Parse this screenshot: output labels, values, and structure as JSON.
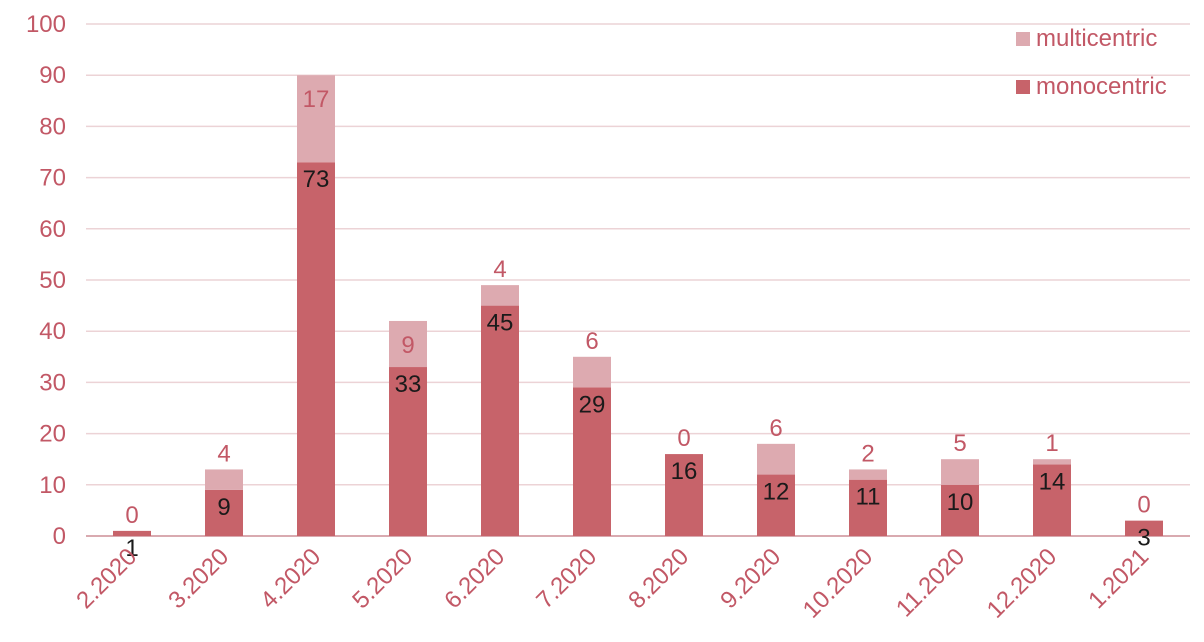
{
  "chart_data": {
    "type": "bar",
    "stacked": true,
    "categories": [
      "2.2020",
      "3.2020",
      "4.2020",
      "5.2020",
      "6.2020",
      "7.2020",
      "8.2020",
      "9.2020",
      "10.2020",
      "11.2020",
      "12.2020",
      "1.2021"
    ],
    "series": [
      {
        "name": "monocentric",
        "values": [
          1,
          9,
          73,
          33,
          45,
          29,
          16,
          12,
          11,
          10,
          14,
          3
        ],
        "color": "#c7636a",
        "label_color": "#1a1a1a"
      },
      {
        "name": "multicentric",
        "values": [
          0,
          4,
          17,
          9,
          4,
          6,
          0,
          6,
          2,
          5,
          1,
          0
        ],
        "color": "#ddaab0",
        "label_color": "#c25866"
      }
    ],
    "legend_order": [
      "multicentric",
      "monocentric"
    ],
    "legend_position": "top-right",
    "ylim": [
      0,
      100
    ],
    "yticks": [
      0,
      10,
      20,
      30,
      40,
      50,
      60,
      70,
      80,
      90,
      100
    ],
    "grid": true,
    "axis_color": "#c25866",
    "grid_color": "#ecd3d6",
    "title": "",
    "xlabel": "",
    "ylabel": ""
  }
}
